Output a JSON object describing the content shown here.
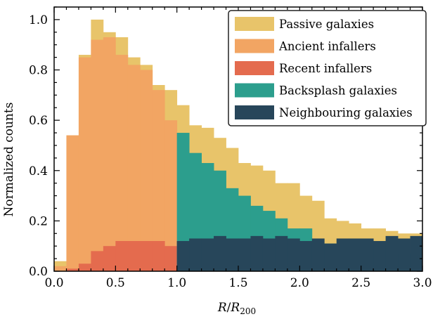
{
  "chart_data": {
    "type": "bar",
    "stacking": "overlay",
    "xlabel": "R/R200",
    "ylabel": "Normalized counts",
    "xlim": [
      0.0,
      3.0
    ],
    "ylim": [
      0.0,
      1.05
    ],
    "xticks": [
      "0.0",
      "0.5",
      "1.0",
      "1.5",
      "2.0",
      "2.5",
      "3.0"
    ],
    "yticks": [
      "0.0",
      "0.2",
      "0.4",
      "0.6",
      "0.8",
      "1.0"
    ],
    "bin_width": 0.1,
    "bin_edges": [
      0.0,
      0.1,
      0.2,
      0.3,
      0.4,
      0.5,
      0.6,
      0.7,
      0.8,
      0.9,
      1.0,
      1.1,
      1.2,
      1.3,
      1.4,
      1.5,
      1.6,
      1.7,
      1.8,
      1.9,
      2.0,
      2.1,
      2.2,
      2.3,
      2.4,
      2.5,
      2.6,
      2.7,
      2.8,
      2.9,
      3.0
    ],
    "legend_position": "top-right",
    "series": [
      {
        "name": "Passive galaxies",
        "color": "#e8c46a",
        "values": [
          0.04,
          0.54,
          0.86,
          1.0,
          0.95,
          0.93,
          0.85,
          0.82,
          0.74,
          0.72,
          0.66,
          0.58,
          0.57,
          0.53,
          0.49,
          0.43,
          0.42,
          0.4,
          0.35,
          0.35,
          0.3,
          0.28,
          0.21,
          0.2,
          0.19,
          0.17,
          0.17,
          0.16,
          0.15,
          0.15
        ]
      },
      {
        "name": "Ancient infallers",
        "color": "#f2a563",
        "values": [
          0.02,
          0.54,
          0.85,
          0.92,
          0.93,
          0.86,
          0.82,
          0.8,
          0.72,
          0.6
        ]
      },
      {
        "name": "Recent infallers",
        "color": "#e46b4e",
        "values": [
          0.0,
          0.01,
          0.03,
          0.08,
          0.1,
          0.12,
          0.12,
          0.12,
          0.12,
          0.1
        ]
      },
      {
        "name": "Backsplash galaxies",
        "color": "#2c9e8d",
        "values": [
          0,
          0,
          0,
          0,
          0,
          0,
          0,
          0,
          0,
          0,
          0.55,
          0.47,
          0.43,
          0.4,
          0.33,
          0.3,
          0.26,
          0.24,
          0.21,
          0.17,
          0.17,
          0.11,
          0.11,
          0.07,
          0.07,
          0.07,
          0.07,
          0.07,
          0.07,
          0.07
        ]
      },
      {
        "name": "Neighbouring galaxies",
        "color": "#27465a",
        "values": [
          0,
          0,
          0,
          0,
          0,
          0,
          0,
          0,
          0,
          0,
          0.12,
          0.13,
          0.13,
          0.14,
          0.13,
          0.13,
          0.14,
          0.13,
          0.14,
          0.13,
          0.12,
          0.13,
          0.11,
          0.13,
          0.13,
          0.13,
          0.12,
          0.14,
          0.13,
          0.14
        ]
      }
    ]
  }
}
